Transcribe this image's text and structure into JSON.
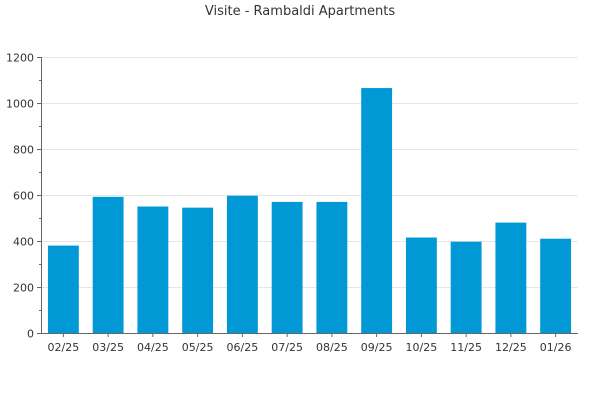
{
  "chart_data": {
    "type": "bar",
    "title": "Visite - Rambaldi Apartments",
    "xlabel": "",
    "ylabel": "",
    "categories": [
      "02/25",
      "03/25",
      "04/25",
      "05/25",
      "06/25",
      "07/25",
      "08/25",
      "09/25",
      "10/25",
      "11/25",
      "12/25",
      "01/26"
    ],
    "values": [
      380,
      592,
      550,
      545,
      597,
      570,
      570,
      1065,
      415,
      397,
      480,
      410
    ],
    "ylim": [
      0,
      1200
    ],
    "yticks": [
      0,
      200,
      400,
      600,
      800,
      1000,
      1200
    ],
    "grid": true,
    "legend": "none",
    "bar_color": "#0099d6"
  }
}
